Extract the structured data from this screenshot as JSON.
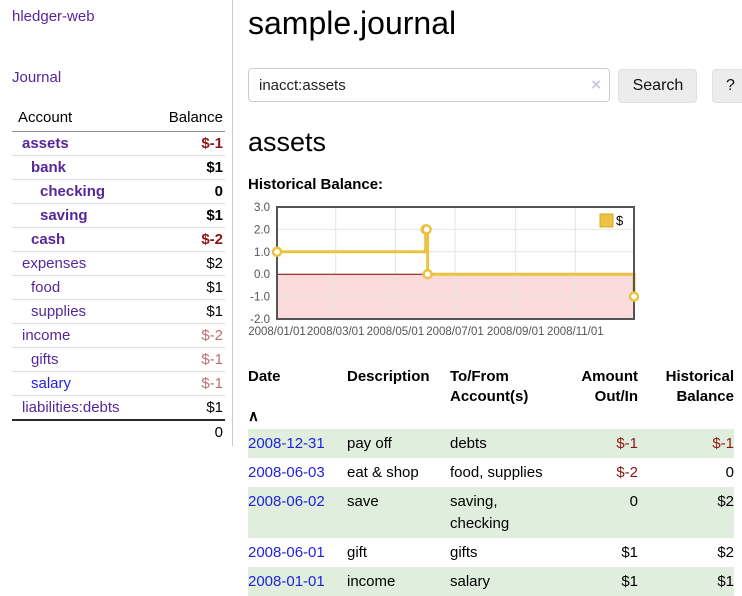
{
  "app": {
    "brand": "hledger-web"
  },
  "sidebar": {
    "nav_journal": "Journal",
    "accounts_table": {
      "header_account": "Account",
      "header_balance": "Balance",
      "rows": [
        {
          "name": "assets",
          "balance": "$-1",
          "depth": 1,
          "bold": true,
          "balance_color": "dark-red"
        },
        {
          "name": "bank",
          "balance": "$1",
          "depth": 2,
          "bold": true,
          "balance_color": "black"
        },
        {
          "name": "checking",
          "balance": "0",
          "depth": 3,
          "bold": true,
          "balance_color": "black"
        },
        {
          "name": "saving",
          "balance": "$1",
          "depth": 3,
          "bold": true,
          "balance_color": "black"
        },
        {
          "name": "cash",
          "balance": "$-2",
          "depth": 2,
          "bold": true,
          "balance_color": "dark-red"
        },
        {
          "name": "expenses",
          "balance": "$2",
          "depth": 1,
          "bold": false,
          "balance_color": "black"
        },
        {
          "name": "food",
          "balance": "$1",
          "depth": 2,
          "bold": false,
          "balance_color": "black"
        },
        {
          "name": "supplies",
          "balance": "$1",
          "depth": 2,
          "bold": false,
          "balance_color": "black"
        },
        {
          "name": "income",
          "balance": "$-2",
          "depth": 1,
          "bold": false,
          "balance_color": "muted-red"
        },
        {
          "name": "gifts",
          "balance": "$-1",
          "depth": 2,
          "bold": false,
          "balance_color": "muted-red"
        },
        {
          "name": "salary",
          "balance": "$-1",
          "depth": 2,
          "bold": false,
          "balance_color": "muted-red"
        },
        {
          "name": "liabilities:debts",
          "balance": "$1",
          "depth": 1,
          "bold": false,
          "balance_color": "black"
        }
      ],
      "total": "0"
    }
  },
  "main": {
    "title": "sample.journal",
    "search": {
      "value": "inacct:assets",
      "button_label": "Search",
      "help_label": "?"
    },
    "section_title": "assets",
    "chart_heading": "Historical Balance:"
  },
  "icons": {
    "sort_asc": "∧",
    "clear_search": "×"
  },
  "chart_data": {
    "type": "line",
    "step": true,
    "title": "Historical Balance:",
    "series": [
      {
        "name": "$",
        "color": "#edc240",
        "points": [
          [
            "2008-01-01",
            1
          ],
          [
            "2008-06-01",
            2
          ],
          [
            "2008-06-02",
            2
          ],
          [
            "2008-06-03",
            0
          ],
          [
            "2008-12-31",
            -1
          ]
        ]
      }
    ],
    "x_range": [
      "2008-01-01",
      "2008-12-31"
    ],
    "ylim": [
      -2,
      3
    ],
    "y_ticks": [
      3.0,
      2.0,
      1.0,
      0.0,
      -1.0,
      -2.0
    ],
    "x_tick_labels": [
      "2008/01/01",
      "2008/03/01",
      "2008/05/01",
      "2008/07/01",
      "2008/09/01",
      "2008/11/01"
    ],
    "grid": true,
    "legend_position": "top-right",
    "negative_fill": "#fadada",
    "zero_line_color": "#8b0000",
    "border_color": "#545454",
    "grid_color": "#e4e4e4",
    "tick_label_color": "#545454"
  },
  "transactions": {
    "headers": {
      "date": "Date",
      "description": {
        "l1": "Description",
        "l2": ""
      },
      "accounts": {
        "l1": "To/From",
        "l2": "Account(s)"
      },
      "amount": {
        "l1": "Amount",
        "l2": "Out/In"
      },
      "balance": {
        "l1": "Historical",
        "l2": "Balance"
      }
    },
    "rows": [
      {
        "date": "2008-12-31",
        "description": "pay off",
        "accounts": "debts",
        "amount": "$-1",
        "balance": "$-1"
      },
      {
        "date": "2008-06-03",
        "description": "eat & shop",
        "accounts": "food, supplies",
        "amount": "$-2",
        "balance": "0"
      },
      {
        "date": "2008-06-02",
        "description": "save",
        "accounts": "saving, checking",
        "amount": "0",
        "balance": "$2"
      },
      {
        "date": "2008-06-01",
        "description": "gift",
        "accounts": "gifts",
        "amount": "$1",
        "balance": "$2"
      },
      {
        "date": "2008-01-01",
        "description": "income",
        "accounts": "salary",
        "amount": "$1",
        "balance": "$1"
      }
    ]
  },
  "colors": {
    "link_purple": "#54289c",
    "link_blue": "#2222dd",
    "negative_strong": "#8f1414",
    "negative_muted": "#bf7070",
    "row_stripe_green": "#dfeedd",
    "chart_line": "#edc240",
    "chart_negative_region": "#fadada",
    "chart_zero_line": "#8b0000",
    "button_bg": "#ececec"
  }
}
